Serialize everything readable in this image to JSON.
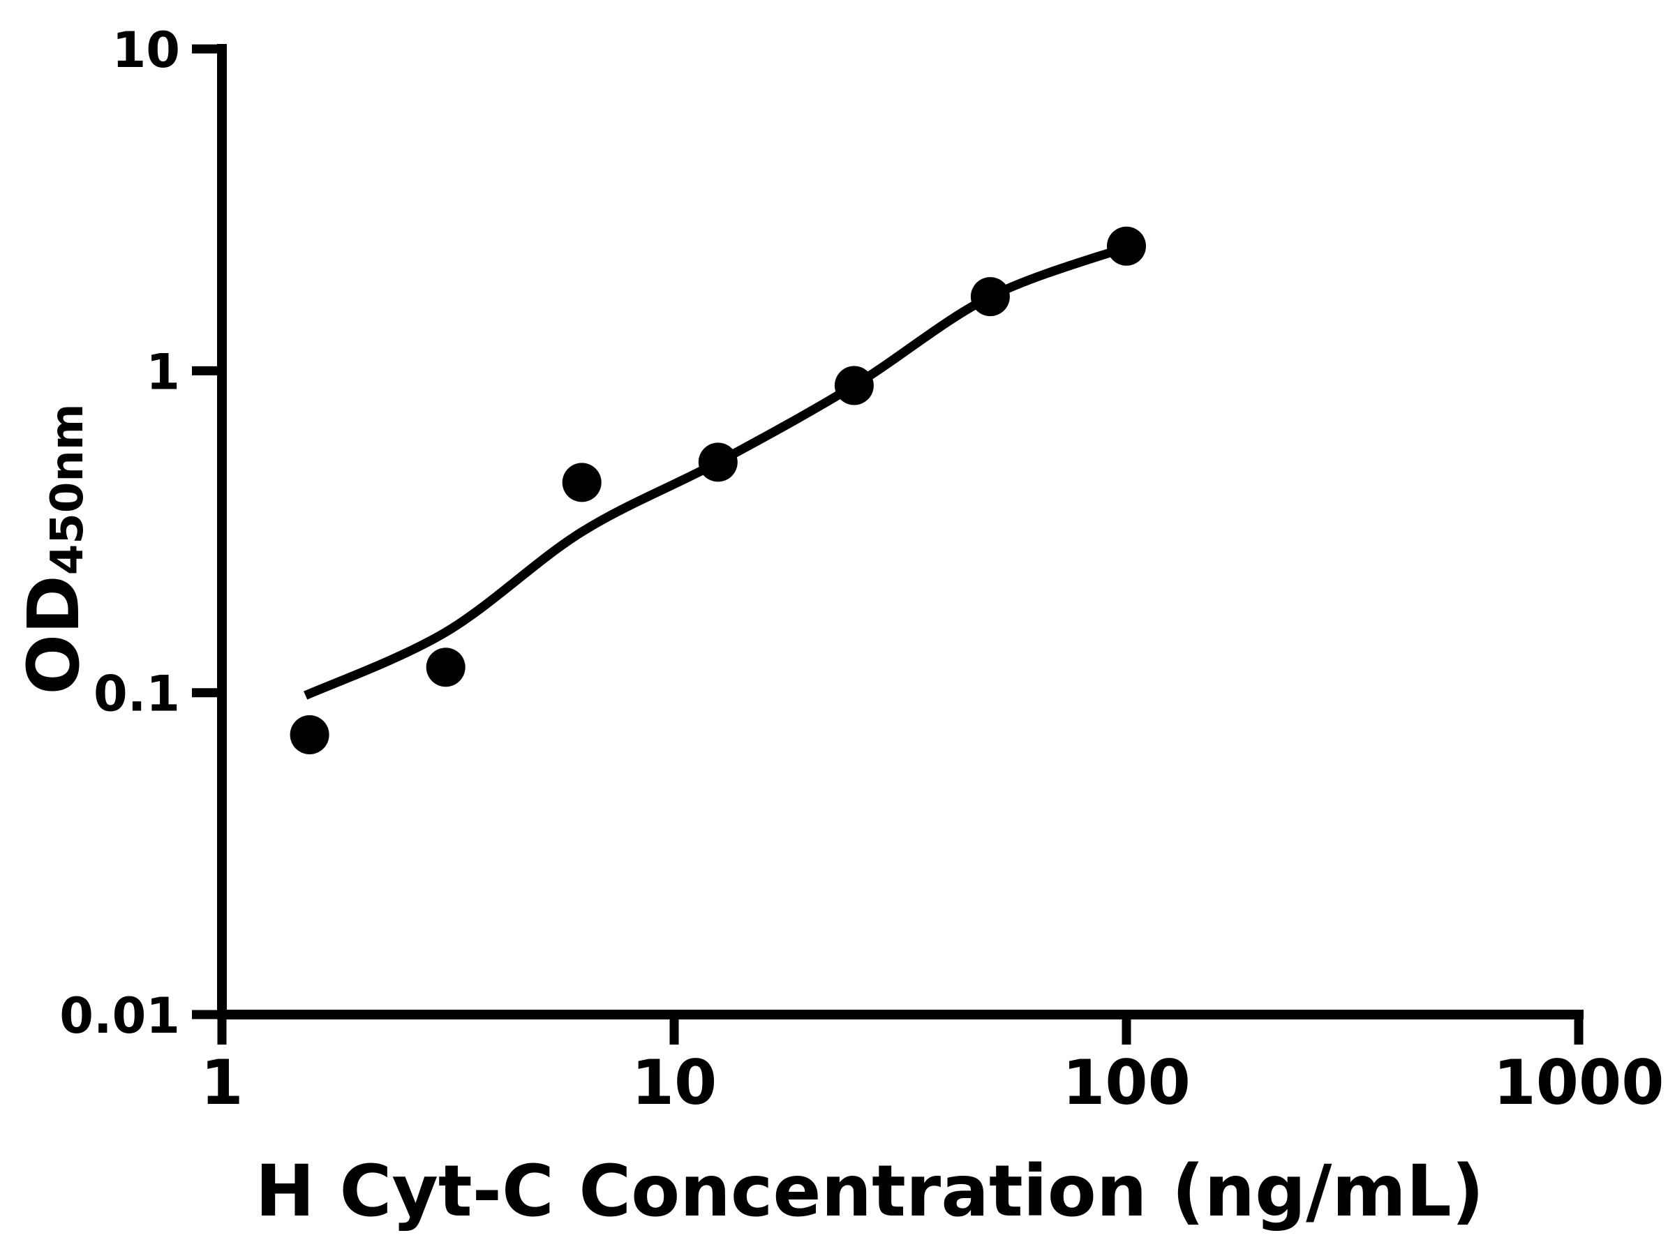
{
  "chart_data": {
    "type": "scatter",
    "title": "",
    "xlabel": "H Cyt-C Concentration (ng/mL)",
    "ylabel": "OD",
    "ylabel_subscript": "450nm",
    "x_scale": "log",
    "y_scale": "log",
    "xlim": [
      1,
      1000
    ],
    "ylim": [
      0.01,
      10
    ],
    "x_ticks": [
      1,
      10,
      100,
      1000
    ],
    "x_tick_labels": [
      "1",
      "10",
      "100",
      "1000"
    ],
    "y_ticks": [
      0.01,
      0.1,
      1,
      10
    ],
    "y_tick_labels": [
      "0.01",
      "0.1",
      "1",
      "10"
    ],
    "grid": false,
    "legend": null,
    "marker_color": "#000000",
    "line_color": "#000000",
    "background_color": "#ffffff",
    "series": [
      {
        "name": "standard-points",
        "marker": "circle",
        "x": [
          1.5625,
          3.125,
          6.25,
          12.5,
          25,
          50,
          100
        ],
        "y": [
          0.074,
          0.12,
          0.45,
          0.52,
          0.9,
          1.7,
          2.44
        ]
      }
    ],
    "fit_curve": {
      "name": "standard-fit-curve",
      "x": [
        1.53,
        3.12,
        6.23,
        12.5,
        25,
        49.6,
        100
      ],
      "y": [
        0.098,
        0.154,
        0.315,
        0.52,
        0.9,
        1.69,
        2.42
      ]
    }
  }
}
